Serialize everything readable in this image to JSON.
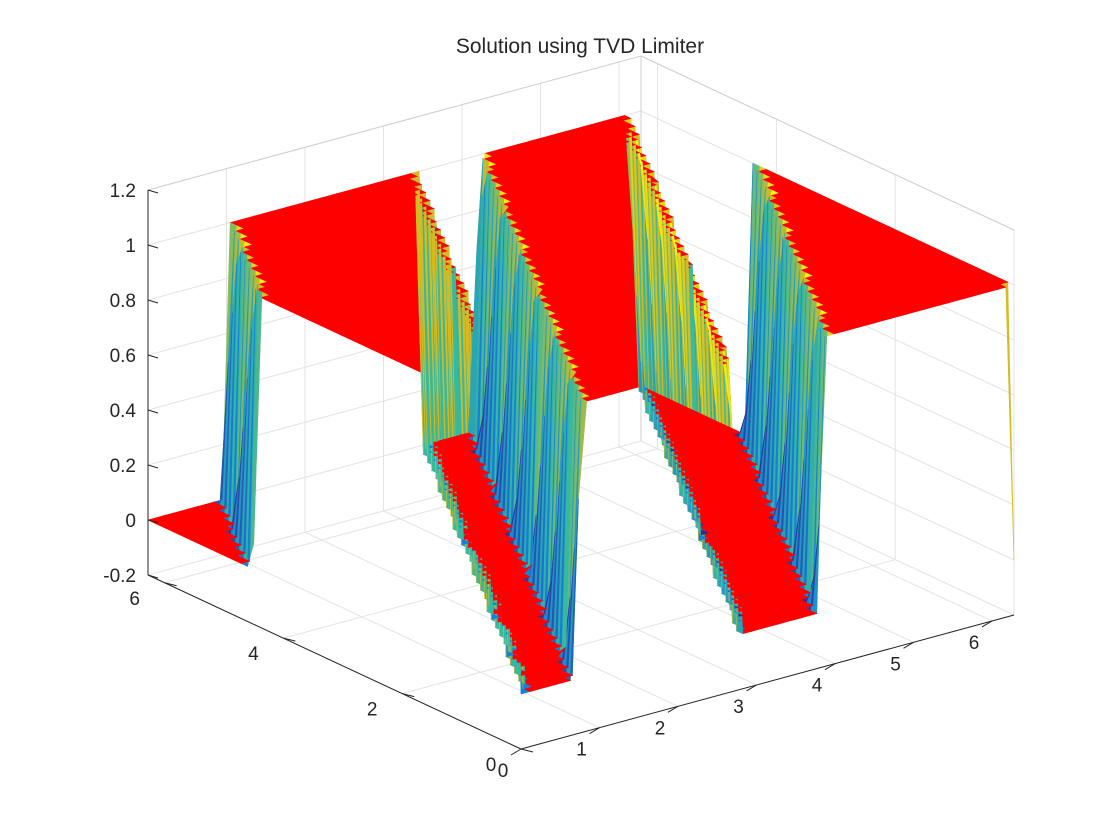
{
  "chart_data": {
    "type": "surface",
    "title": "Solution using TVD Limiter",
    "xlabel": "",
    "ylabel": "",
    "zlabel": "",
    "grid": true,
    "colormap": "parula",
    "x_ticks": [
      "0",
      "1",
      "2",
      "3",
      "4",
      "5",
      "6"
    ],
    "y_ticks": [
      "0",
      "2",
      "4",
      "6"
    ],
    "z_ticks": [
      "-0.2",
      "0",
      "0.2",
      "0.4",
      "0.6",
      "0.8",
      "1",
      "1.2"
    ],
    "xlim": [
      0,
      6.28
    ],
    "ylim": [
      0,
      6.28
    ],
    "zlim": [
      -0.2,
      1.2
    ],
    "profile": {
      "description_points_x_over_time0": [
        0.0,
        0.7,
        0.75,
        2.7,
        2.75,
        3.8,
        3.85,
        6.28
      ],
      "u": [
        0.0,
        0.0,
        1.0,
        1.0,
        0.0,
        0.0,
        1.0,
        1.0
      ]
    },
    "marker_color": "#ff0000",
    "marker_highlight": "#ffff33"
  }
}
